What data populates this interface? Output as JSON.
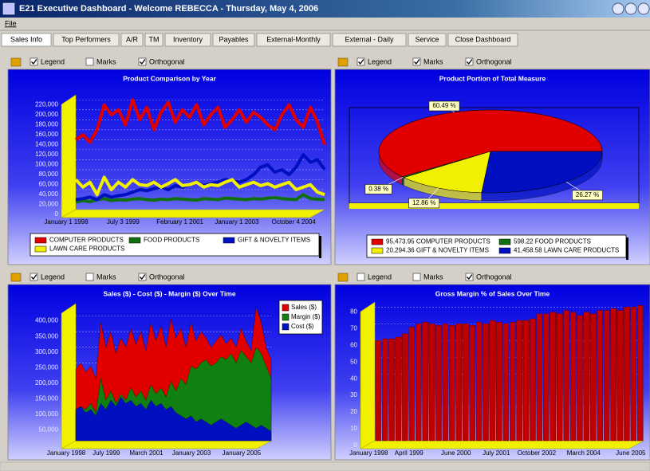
{
  "window": {
    "title": "E21 Executive Dashboard  -  Welcome REBECCA  -  Thursday, May 4, 2006"
  },
  "menu": [
    "File"
  ],
  "tabs": [
    "Sales Info",
    "Top Performers",
    "A/R",
    "TM",
    "Inventory",
    "Payables",
    "External-Monthly",
    "External - Daily",
    "Service",
    "Close Dashboard"
  ],
  "toolbars": [
    [
      {
        "label": "Legend",
        "checked": true
      },
      {
        "label": "Marks",
        "checked": false
      },
      {
        "label": "Orthogonal",
        "checked": true
      }
    ],
    [
      {
        "label": "Legend",
        "checked": true
      },
      {
        "label": "Marks",
        "checked": true
      },
      {
        "label": "Orthogonal",
        "checked": true
      }
    ],
    [
      {
        "label": "Legend",
        "checked": true
      },
      {
        "label": "Marks",
        "checked": false
      },
      {
        "label": "Orthogonal",
        "checked": true
      }
    ],
    [
      {
        "label": "Legend",
        "checked": false
      },
      {
        "label": "Marks",
        "checked": false
      },
      {
        "label": "Orthogonal",
        "checked": true
      }
    ]
  ],
  "chart_data": [
    {
      "type": "line",
      "title": "Product Comparison by Year",
      "categories": [
        "January 1 1998",
        null,
        null,
        null,
        null,
        null,
        null,
        null,
        "July 3 1999",
        null,
        null,
        null,
        null,
        null,
        null,
        null,
        "February 1 2001",
        null,
        null,
        null,
        null,
        null,
        null,
        null,
        "January 1 2003",
        null,
        null,
        null,
        null,
        null,
        null,
        null,
        "October 4 2004",
        null,
        null,
        null
      ],
      "series": [
        {
          "name": "COMPUTER PRODUCTS",
          "color": "#e00000",
          "values": [
            140000,
            150000,
            135000,
            160000,
            210000,
            190000,
            200000,
            170000,
            220000,
            180000,
            205000,
            160000,
            195000,
            215000,
            175000,
            200000,
            185000,
            210000,
            170000,
            190000,
            205000,
            165000,
            180000,
            200000,
            175000,
            195000,
            185000,
            170000,
            160000,
            190000,
            210000,
            180000,
            165000,
            205000,
            175000,
            130000
          ]
        },
        {
          "name": "FOOD PRODUCTS",
          "color": "#107010",
          "values": [
            15000,
            18000,
            16000,
            20000,
            22000,
            18000,
            20000,
            19000,
            21000,
            22000,
            20000,
            19000,
            21000,
            20000,
            22000,
            21000,
            20000,
            19000,
            22000,
            21000,
            20000,
            23000,
            22000,
            21000,
            20000,
            22000,
            21000,
            23000,
            24000,
            22000,
            21000,
            20000,
            30000,
            22000,
            21000,
            20000
          ]
        },
        {
          "name": "GIFT & NOVELTY ITEMS",
          "color": "#0010c0",
          "values": [
            20000,
            22000,
            25000,
            20000,
            30000,
            25000,
            28000,
            30000,
            35000,
            40000,
            38000,
            42000,
            45000,
            40000,
            48000,
            45000,
            50000,
            55000,
            48000,
            52000,
            55000,
            60000,
            58000,
            55000,
            60000,
            70000,
            85000,
            90000,
            75000,
            80000,
            70000,
            85000,
            110000,
            95000,
            100000,
            80000
          ]
        },
        {
          "name": "LAWN CARE PRODUCTS",
          "color": "#f0f000",
          "values": [
            60000,
            45000,
            55000,
            30000,
            65000,
            40000,
            55000,
            45000,
            60000,
            50000,
            48000,
            55000,
            45000,
            52000,
            60000,
            48000,
            50000,
            55000,
            45000,
            50000,
            48000,
            55000,
            60000,
            45000,
            50000,
            55000,
            48000,
            52000,
            45000,
            50000,
            55000,
            40000,
            45000,
            50000,
            35000,
            30000
          ]
        }
      ],
      "ylim": [
        0,
        230000
      ],
      "yticks": [
        0,
        {
          "value": 20000,
          "label": "20,000"
        },
        {
          "value": 40000,
          "label": "40,000"
        },
        {
          "value": 60000,
          "label": "60,000"
        },
        {
          "value": 80000,
          "label": "80,000"
        },
        {
          "value": 100000,
          "label": "100,000"
        },
        {
          "value": 120000,
          "label": "120,000"
        },
        {
          "value": 140000,
          "label": "140,000"
        },
        {
          "value": 160000,
          "label": "160,000"
        },
        {
          "value": 180000,
          "label": "180,000"
        },
        {
          "value": 200000,
          "label": "200,000"
        },
        {
          "value": 220000,
          "label": "220,000"
        }
      ],
      "grid": true,
      "legend": "bottom"
    },
    {
      "type": "pie",
      "title": "Product Portion of Total Measure",
      "categories": [
        "95,473.95 COMPUTER PRODUCTS",
        "598.22 FOOD PRODUCTS",
        "20,294.36 GIFT & NOVELTY ITEMS",
        "41,458.58 LAWN CARE PRODUCTS"
      ],
      "values": [
        60.49,
        0.38,
        12.86,
        26.27
      ],
      "value_labels": [
        "60.49 %",
        "0.38 %",
        "12.86 %",
        "26.27 %"
      ],
      "colors": [
        "#e00000",
        "#107010",
        "#f0f000",
        "#0010c0"
      ],
      "legend": "bottom"
    },
    {
      "type": "area",
      "title": "Sales ($) - Cost ($) - Margin ($) Over Time",
      "categories": [
        "January 1998",
        null,
        null,
        null,
        null,
        null,
        null,
        null,
        "July 1999",
        null,
        null,
        null,
        null,
        null,
        null,
        null,
        "March 2001",
        null,
        null,
        null,
        null,
        null,
        null,
        null,
        null,
        "January 2003",
        null,
        null,
        null,
        null,
        null,
        null,
        null,
        null,
        null,
        "January 2005",
        null,
        null,
        null,
        null
      ],
      "series": [
        {
          "name": "Sales ($)",
          "color": "#e00000",
          "values": [
            230000,
            250000,
            220000,
            240000,
            200000,
            380000,
            300000,
            350000,
            280000,
            330000,
            300000,
            360000,
            310000,
            350000,
            290000,
            380000,
            320000,
            370000,
            300000,
            390000,
            330000,
            360000,
            300000,
            380000,
            320000,
            350000,
            330000,
            300000,
            320000,
            340000,
            310000,
            330000,
            300000,
            360000,
            320000,
            290000,
            430000,
            380000,
            300000,
            260000
          ]
        },
        {
          "name": "Margin ($)",
          "color": "#108010",
          "values": [
            90000,
            110000,
            100000,
            120000,
            90000,
            200000,
            130000,
            160000,
            120000,
            150000,
            130000,
            170000,
            140000,
            160000,
            130000,
            180000,
            150000,
            170000,
            140000,
            190000,
            160000,
            200000,
            180000,
            240000,
            230000,
            250000,
            260000,
            240000,
            250000,
            270000,
            260000,
            280000,
            250000,
            290000,
            270000,
            250000,
            300000,
            280000,
            240000,
            200000
          ]
        },
        {
          "name": "Cost ($)",
          "color": "#0010c0",
          "values": [
            100000,
            110000,
            90000,
            100000,
            80000,
            120000,
            100000,
            130000,
            110000,
            140000,
            120000,
            130000,
            110000,
            120000,
            100000,
            130000,
            110000,
            120000,
            100000,
            110000,
            90000,
            80000,
            70000,
            80000,
            60000,
            70000,
            60000,
            50000,
            60000,
            70000,
            60000,
            50000,
            40000,
            50000,
            60000,
            50000,
            40000,
            50000,
            40000,
            30000
          ]
        }
      ],
      "ylim": [
        0,
        440000
      ],
      "yticks": [
        {
          "value": 50000,
          "label": "50,000"
        },
        {
          "value": 100000,
          "label": "100,000"
        },
        {
          "value": 150000,
          "label": "150,000"
        },
        {
          "value": 200000,
          "label": "200,000"
        },
        {
          "value": 250000,
          "label": "250,000"
        },
        {
          "value": 300000,
          "label": "300,000"
        },
        {
          "value": 350000,
          "label": "350,000"
        },
        {
          "value": 400000,
          "label": "400,000"
        }
      ],
      "grid": true,
      "legend": "top-right"
    },
    {
      "type": "bar",
      "title": "Gross Margin  % of Sales Over Time",
      "categories": [
        "January 1998",
        null,
        null,
        null,
        null,
        null,
        "April 1999",
        null,
        null,
        null,
        null,
        null,
        null,
        "June 2000",
        null,
        null,
        null,
        null,
        null,
        "July 2001",
        null,
        null,
        null,
        null,
        null,
        "October 2002",
        null,
        null,
        null,
        null,
        null,
        null,
        "March 2004",
        null,
        null,
        null,
        null,
        null,
        null,
        "June 2005"
      ],
      "values": [
        60,
        61,
        61,
        62,
        64,
        68,
        70,
        71,
        70,
        69,
        70,
        69,
        70,
        70,
        69,
        71,
        70,
        72,
        71,
        70,
        71,
        72,
        72,
        73,
        76,
        76,
        77,
        76,
        78,
        77,
        75,
        77,
        76,
        78,
        78,
        79,
        78,
        80,
        80,
        81
      ],
      "color": "#c00000",
      "ylim": [
        0,
        83
      ],
      "yticks": [
        0,
        10,
        20,
        30,
        40,
        50,
        60,
        70,
        80
      ],
      "grid": true
    }
  ]
}
